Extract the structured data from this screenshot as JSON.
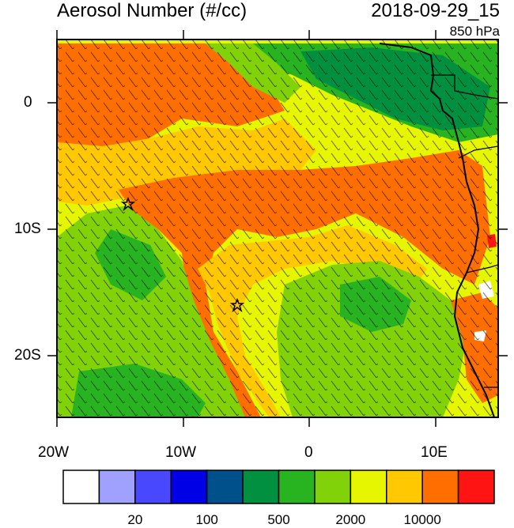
{
  "header": {
    "title": "Aerosol Number (#/cc)",
    "timestamp": "2018-09-29_15",
    "level": "850 hPa"
  },
  "axes": {
    "lon_labels": [
      "20W",
      "10W",
      "0",
      "10E"
    ],
    "lat_labels": [
      "0",
      "10S",
      "20S"
    ]
  },
  "colorbar": {
    "colors": [
      "#ffffff",
      "#a0a0ff",
      "#4848ff",
      "#0000e6",
      "#00508c",
      "#009040",
      "#28b420",
      "#82d20a",
      "#e6f500",
      "#ffc800",
      "#ff6e00",
      "#ff1414"
    ],
    "labels": [
      "20",
      "100",
      "500",
      "2000",
      "10000"
    ]
  },
  "markers": [
    {
      "name": "star-1",
      "lon": -14.4,
      "lat": -8.0
    },
    {
      "name": "star-2",
      "lon": -5.7,
      "lat": -16.0
    }
  ]
}
